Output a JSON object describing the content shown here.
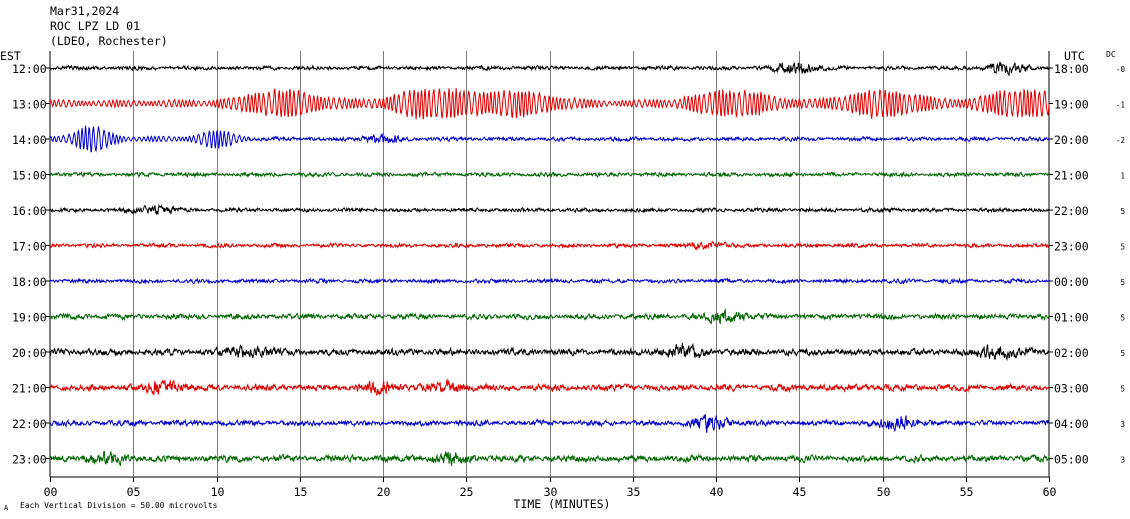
{
  "header": {
    "date": "Mar31,2024",
    "station": "ROC LPZ LD 01",
    "network": "(LDEO, Rochester)"
  },
  "chart_data": {
    "type": "line",
    "title": "Mar31,2024",
    "left_axis_label": "EST",
    "right_axis_label": "UTC",
    "dc_label": "DC",
    "xlabel": "TIME (MINUTES)",
    "xlim": [
      0,
      60
    ],
    "x_ticks": [
      "00",
      "05",
      "10",
      "15",
      "20",
      "25",
      "30",
      "35",
      "40",
      "45",
      "50",
      "55",
      "60"
    ],
    "scale_note": "Each Vertical Division =   50.00 microvolts",
    "corner_mark": "A",
    "trace_colors": [
      "#000000",
      "#dd0000",
      "#0000cc",
      "#006600"
    ],
    "rows": [
      {
        "est": "12:00",
        "utc": "18:00",
        "dc": "-0",
        "amplitude": 3,
        "events": [
          {
            "t": 44.8,
            "amp": 8
          },
          {
            "t": 57.5,
            "amp": 7
          }
        ]
      },
      {
        "est": "13:00",
        "utc": "19:00",
        "dc": "-1",
        "amplitude": 4,
        "events": [
          {
            "t": 14,
            "amp": 12
          },
          {
            "t": 23,
            "amp": 14
          },
          {
            "t": 28,
            "amp": 11
          },
          {
            "t": 41,
            "amp": 12
          },
          {
            "t": 50,
            "amp": 12
          },
          {
            "t": 58.5,
            "amp": 13
          }
        ]
      },
      {
        "est": "14:00",
        "utc": "20:00",
        "dc": "-2",
        "amplitude": 3,
        "events": [
          {
            "t": 2.5,
            "amp": 12
          },
          {
            "t": 10,
            "amp": 7
          },
          {
            "t": 20,
            "amp": 5
          }
        ]
      },
      {
        "est": "15:00",
        "utc": "21:00",
        "dc": "1",
        "amplitude": 3,
        "events": []
      },
      {
        "est": "16:00",
        "utc": "22:00",
        "dc": "5",
        "amplitude": 3,
        "events": [
          {
            "t": 6.3,
            "amp": 5
          }
        ]
      },
      {
        "est": "17:00",
        "utc": "23:00",
        "dc": "5",
        "amplitude": 3,
        "events": [
          {
            "t": 39.5,
            "amp": 4
          }
        ]
      },
      {
        "est": "18:00",
        "utc": "00:00",
        "dc": "5",
        "amplitude": 3,
        "events": []
      },
      {
        "est": "19:00",
        "utc": "01:00",
        "dc": "5",
        "amplitude": 4,
        "events": [
          {
            "t": 40.6,
            "amp": 8
          }
        ]
      },
      {
        "est": "20:00",
        "utc": "02:00",
        "dc": "5",
        "amplitude": 5,
        "events": [
          {
            "t": 12,
            "amp": 6
          },
          {
            "t": 38,
            "amp": 7
          },
          {
            "t": 57,
            "amp": 7
          }
        ]
      },
      {
        "est": "21:00",
        "utc": "03:00",
        "dc": "5",
        "amplitude": 5,
        "events": [
          {
            "t": 6.8,
            "amp": 7
          },
          {
            "t": 20,
            "amp": 6
          },
          {
            "t": 24,
            "amp": 6
          }
        ]
      },
      {
        "est": "22:00",
        "utc": "04:00",
        "dc": "3",
        "amplitude": 4,
        "events": [
          {
            "t": 39.6,
            "amp": 9
          },
          {
            "t": 51,
            "amp": 8
          }
        ]
      },
      {
        "est": "23:00",
        "utc": "05:00",
        "dc": "3",
        "amplitude": 5,
        "events": [
          {
            "t": 3.5,
            "amp": 7
          },
          {
            "t": 24,
            "amp": 6
          }
        ]
      }
    ]
  }
}
